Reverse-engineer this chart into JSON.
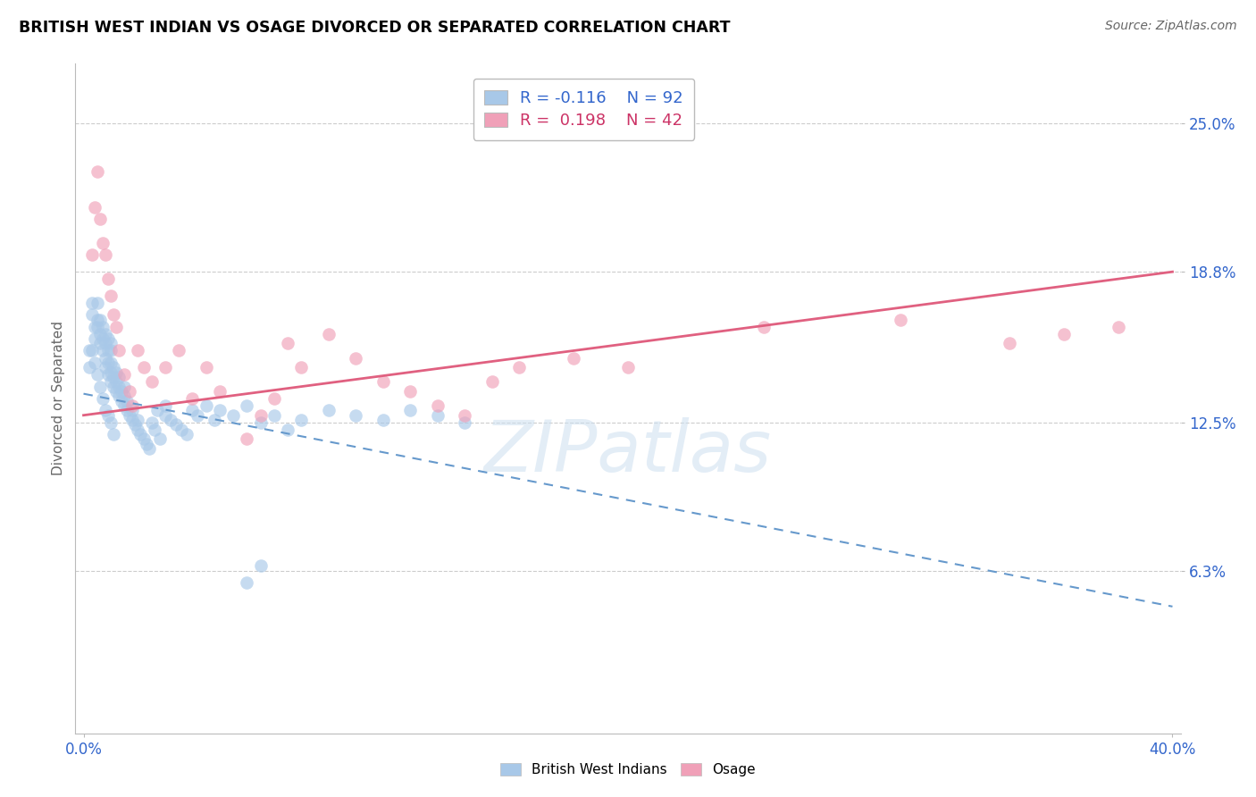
{
  "title": "BRITISH WEST INDIAN VS OSAGE DIVORCED OR SEPARATED CORRELATION CHART",
  "source": "Source: ZipAtlas.com",
  "ylabel": "Divorced or Separated",
  "ytick_vals": [
    0.063,
    0.125,
    0.188,
    0.25
  ],
  "ytick_labels": [
    "6.3%",
    "12.5%",
    "18.8%",
    "25.0%"
  ],
  "xtick_vals": [
    0.0,
    0.4
  ],
  "xtick_labels": [
    "0.0%",
    "40.0%"
  ],
  "xlim": [
    0.0,
    0.4
  ],
  "ylim": [
    0.0,
    0.27
  ],
  "legend_blue_R": "-0.116",
  "legend_blue_N": "92",
  "legend_pink_R": "0.198",
  "legend_pink_N": "42",
  "blue_color": "#a8c8e8",
  "pink_color": "#f0a0b8",
  "blue_line_color": "#6699cc",
  "pink_line_color": "#e06080",
  "watermark": "ZIPatlas",
  "blue_x": [
    0.002,
    0.003,
    0.003,
    0.004,
    0.004,
    0.005,
    0.005,
    0.005,
    0.006,
    0.006,
    0.006,
    0.007,
    0.007,
    0.007,
    0.008,
    0.008,
    0.008,
    0.008,
    0.009,
    0.009,
    0.009,
    0.009,
    0.01,
    0.01,
    0.01,
    0.01,
    0.01,
    0.011,
    0.011,
    0.011,
    0.012,
    0.012,
    0.012,
    0.013,
    0.013,
    0.013,
    0.014,
    0.014,
    0.015,
    0.015,
    0.015,
    0.016,
    0.016,
    0.017,
    0.018,
    0.018,
    0.019,
    0.02,
    0.02,
    0.021,
    0.022,
    0.023,
    0.024,
    0.025,
    0.026,
    0.027,
    0.028,
    0.03,
    0.03,
    0.032,
    0.034,
    0.036,
    0.038,
    0.04,
    0.042,
    0.045,
    0.048,
    0.05,
    0.055,
    0.06,
    0.065,
    0.07,
    0.075,
    0.08,
    0.09,
    0.1,
    0.11,
    0.12,
    0.13,
    0.14,
    0.002,
    0.003,
    0.004,
    0.005,
    0.006,
    0.007,
    0.008,
    0.009,
    0.01,
    0.011,
    0.06,
    0.065
  ],
  "blue_y": [
    0.155,
    0.17,
    0.175,
    0.16,
    0.165,
    0.168,
    0.175,
    0.165,
    0.158,
    0.162,
    0.168,
    0.155,
    0.16,
    0.165,
    0.148,
    0.152,
    0.158,
    0.162,
    0.145,
    0.15,
    0.155,
    0.16,
    0.142,
    0.146,
    0.15,
    0.155,
    0.158,
    0.14,
    0.144,
    0.148,
    0.138,
    0.142,
    0.146,
    0.136,
    0.14,
    0.144,
    0.134,
    0.138,
    0.132,
    0.136,
    0.14,
    0.13,
    0.134,
    0.128,
    0.126,
    0.13,
    0.124,
    0.122,
    0.126,
    0.12,
    0.118,
    0.116,
    0.114,
    0.125,
    0.122,
    0.13,
    0.118,
    0.128,
    0.132,
    0.126,
    0.124,
    0.122,
    0.12,
    0.13,
    0.128,
    0.132,
    0.126,
    0.13,
    0.128,
    0.132,
    0.125,
    0.128,
    0.122,
    0.126,
    0.13,
    0.128,
    0.126,
    0.13,
    0.128,
    0.125,
    0.148,
    0.155,
    0.15,
    0.145,
    0.14,
    0.135,
    0.13,
    0.128,
    0.125,
    0.12,
    0.058,
    0.065
  ],
  "pink_x": [
    0.003,
    0.004,
    0.005,
    0.006,
    0.007,
    0.008,
    0.009,
    0.01,
    0.011,
    0.012,
    0.013,
    0.015,
    0.017,
    0.018,
    0.02,
    0.022,
    0.025,
    0.03,
    0.035,
    0.04,
    0.045,
    0.05,
    0.06,
    0.065,
    0.07,
    0.075,
    0.08,
    0.09,
    0.1,
    0.11,
    0.12,
    0.13,
    0.14,
    0.15,
    0.16,
    0.18,
    0.2,
    0.25,
    0.3,
    0.34,
    0.36,
    0.38
  ],
  "pink_y": [
    0.195,
    0.215,
    0.23,
    0.21,
    0.2,
    0.195,
    0.185,
    0.178,
    0.17,
    0.165,
    0.155,
    0.145,
    0.138,
    0.132,
    0.155,
    0.148,
    0.142,
    0.148,
    0.155,
    0.135,
    0.148,
    0.138,
    0.118,
    0.128,
    0.135,
    0.158,
    0.148,
    0.162,
    0.152,
    0.142,
    0.138,
    0.132,
    0.128,
    0.142,
    0.148,
    0.152,
    0.148,
    0.165,
    0.168,
    0.158,
    0.162,
    0.165
  ]
}
